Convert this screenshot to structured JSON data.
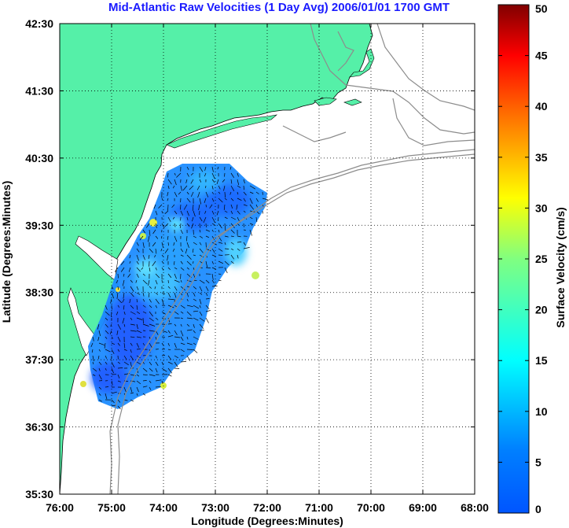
{
  "title": "Mid-Atlantic Raw Velocities (1 Day Avg) 2006/01/01 1700 GMT",
  "axes": {
    "xlabel": "Longitude (Degrees:Minutes)",
    "ylabel": "Latitude (Degrees:Minutes)",
    "x_ticks": [
      "76:00",
      "75:00",
      "74:00",
      "73:00",
      "72:00",
      "71:00",
      "70:00",
      "69:00",
      "68:00"
    ],
    "y_ticks": [
      "42:30",
      "41:30",
      "40:30",
      "39:30",
      "38:30",
      "37:30",
      "36:30",
      "35:30"
    ],
    "grid": "dotted"
  },
  "colorbar": {
    "label": "Surface Velocity (cm/s)",
    "ticks": [
      "50",
      "45",
      "40",
      "35",
      "30",
      "25",
      "20",
      "15",
      "10",
      "5",
      "0"
    ],
    "range": [
      0,
      50
    ],
    "colormap": "jet"
  },
  "colors": {
    "land": "#55f0a8",
    "isobath": "#8c8c8c",
    "title": "#1a1aff",
    "vector": "#000000"
  }
}
